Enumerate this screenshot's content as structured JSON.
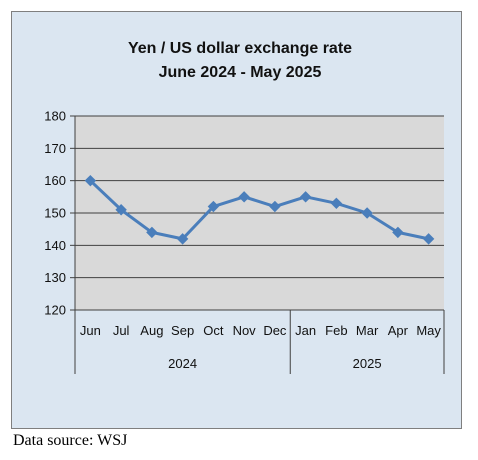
{
  "chart_data": {
    "type": "line",
    "title_lines": [
      "Yen / US dollar exchange rate",
      "June 2024 - May 2025"
    ],
    "categories": [
      "Jun",
      "Jul",
      "Aug",
      "Sep",
      "Oct",
      "Nov",
      "Dec",
      "Jan",
      "Feb",
      "Mar",
      "Apr",
      "May"
    ],
    "groups": [
      {
        "label": "2024",
        "categories": [
          "Jun",
          "Jul",
          "Aug",
          "Sep",
          "Oct",
          "Nov",
          "Dec"
        ]
      },
      {
        "label": "2025",
        "categories": [
          "Jan",
          "Feb",
          "Mar",
          "Apr",
          "May"
        ]
      }
    ],
    "series": [
      {
        "values": [
          160,
          151,
          144,
          142,
          152,
          155,
          152,
          155,
          153,
          150,
          144,
          142
        ]
      }
    ],
    "ylim": [
      120,
      180
    ],
    "yticks": [
      "120",
      "130",
      "140",
      "150",
      "160",
      "170",
      "180"
    ],
    "grid": true,
    "legend": "none",
    "colors": {
      "series": "#4a7ebb",
      "plot_bg": "#d9d9d9",
      "chart_bg": "#dbe6f1",
      "gridline": "#404040"
    }
  },
  "footer": {
    "source": "Data source: WSJ"
  }
}
